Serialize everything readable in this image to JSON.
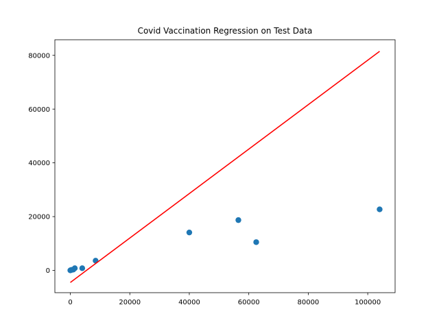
{
  "chart_data": {
    "type": "scatter",
    "title": "Covid Vaccination Regression on Test Data",
    "xlabel": "",
    "ylabel": "",
    "xlim": [
      -5200,
      109200
    ],
    "ylim": [
      -8300,
      85800
    ],
    "xticks": [
      0,
      20000,
      40000,
      60000,
      80000,
      100000
    ],
    "yticks": [
      0,
      20000,
      40000,
      60000,
      80000
    ],
    "grid": false,
    "series": [
      {
        "type": "scatter",
        "color": "#1f77b4",
        "points": [
          [
            0,
            0
          ],
          [
            200,
            100
          ],
          [
            500,
            200
          ],
          [
            1000,
            300
          ],
          [
            1500,
            800
          ],
          [
            4000,
            800
          ],
          [
            8500,
            3600
          ],
          [
            40000,
            14100
          ],
          [
            56500,
            18700
          ],
          [
            62500,
            10500
          ],
          [
            104000,
            22700
          ]
        ]
      },
      {
        "type": "line",
        "color": "#ff0000",
        "points": [
          [
            0,
            -4500
          ],
          [
            104000,
            81500
          ]
        ]
      }
    ]
  }
}
